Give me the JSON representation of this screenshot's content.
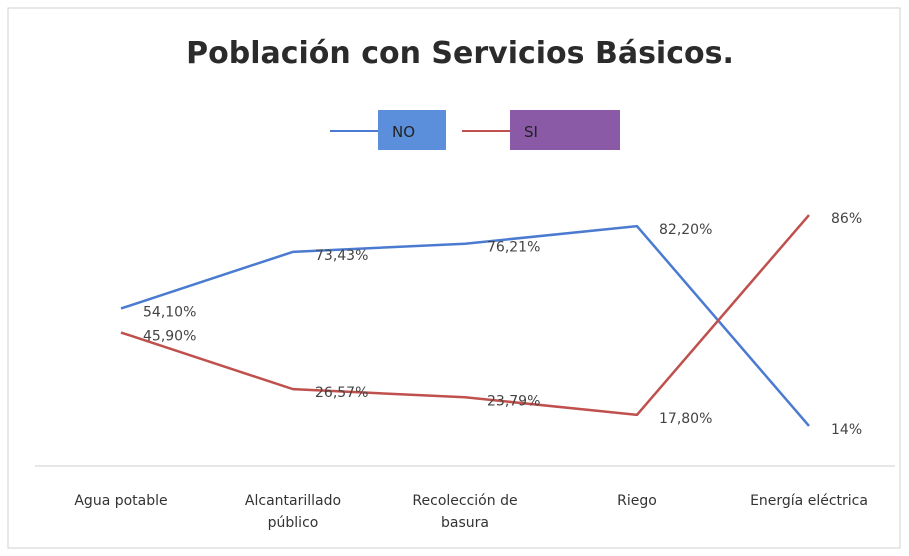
{
  "chart_data": {
    "type": "line",
    "title": "Población con Servicios Básicos.",
    "categories": [
      "Agua potable",
      "Alcantarillado público",
      "Recolección de basura",
      "Riego",
      "Energía eléctrica"
    ],
    "series": [
      {
        "name": "NO",
        "color": "#4a7bd0",
        "values": [
          54.1,
          73.43,
          76.21,
          82.2,
          14
        ],
        "value_labels": [
          "54,10%",
          "73,43%",
          "76,21%",
          "82,20%",
          "14%"
        ]
      },
      {
        "name": "SI",
        "color": "#c0504d",
        "values": [
          45.9,
          26.57,
          23.79,
          17.8,
          86
        ],
        "value_labels": [
          "45,90%",
          "26,57%",
          "23,79%",
          "17,80%",
          "86%"
        ]
      }
    ],
    "ylim": [
      0,
      100
    ]
  }
}
